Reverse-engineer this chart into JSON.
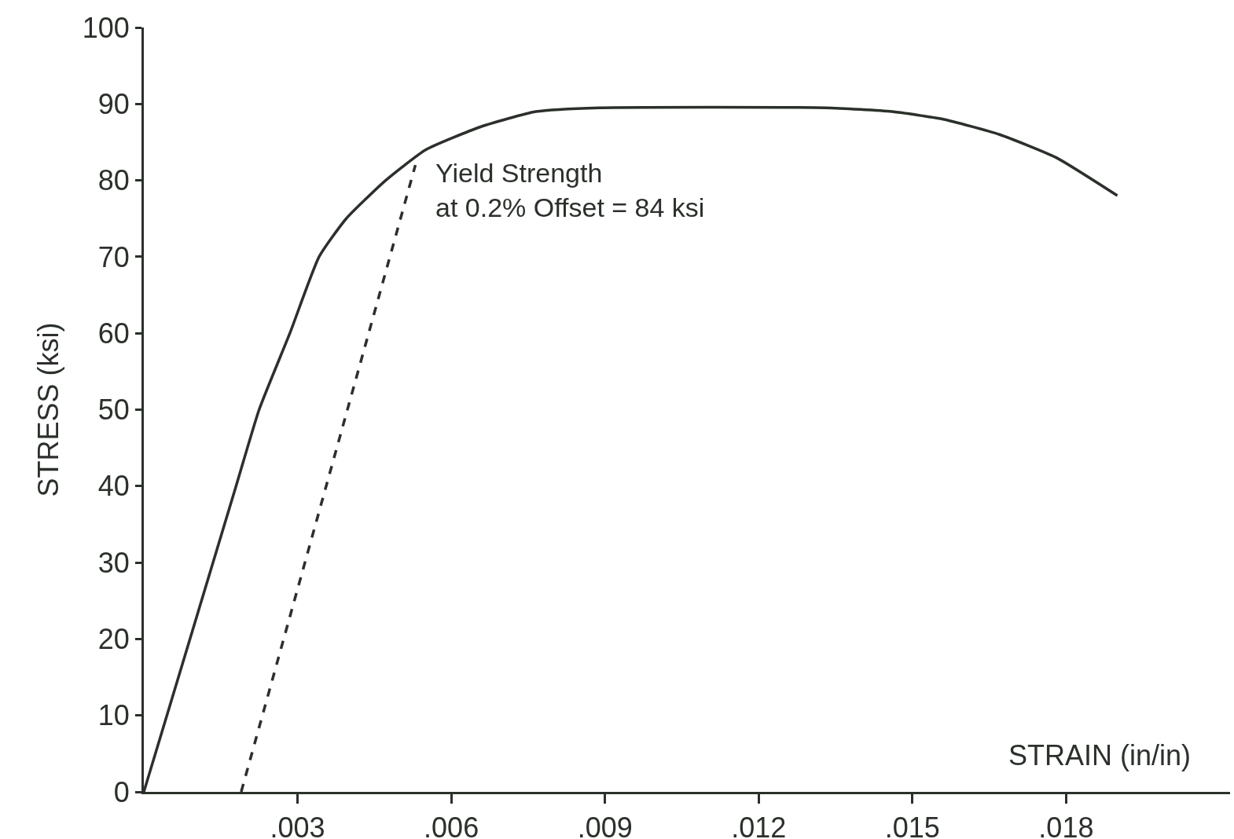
{
  "chart_data": {
    "type": "line",
    "xlabel": "STRAIN (in/in)",
    "ylabel": "STRESS (ksi)",
    "xlim": [
      0,
      0.0212
    ],
    "ylim": [
      0,
      100
    ],
    "xticks": [
      {
        "value": 0.003,
        "label": ".003"
      },
      {
        "value": 0.006,
        "label": ".006"
      },
      {
        "value": 0.009,
        "label": ".009"
      },
      {
        "value": 0.012,
        "label": ".012"
      },
      {
        "value": 0.015,
        "label": ".015"
      },
      {
        "value": 0.018,
        "label": ".018"
      }
    ],
    "yticks": [
      0,
      10,
      20,
      30,
      40,
      50,
      60,
      70,
      80,
      90,
      100
    ],
    "grid": false,
    "marker": "none",
    "series": [
      {
        "color": "#2b302b",
        "line_style": "solid",
        "x": [
          0,
          0.0009,
          0.0018,
          0.00225,
          0.00285,
          0.00342,
          0.00395,
          0.00472,
          0.0055,
          0.00657,
          0.00765,
          0.0089,
          0.0133,
          0.0146,
          0.0156,
          0.0167,
          0.0178,
          0.019
        ],
        "values": [
          0,
          20,
          40,
          50,
          60,
          70,
          75,
          80,
          84,
          87,
          89,
          89.5,
          89.5,
          89,
          88,
          86,
          83,
          78
        ]
      },
      {
        "color": "#2b302b",
        "line_style": "dashed",
        "x": [
          0.0019,
          0.0053
        ],
        "values": [
          0,
          82
        ]
      }
    ],
    "annotations": [
      {
        "text": "Yield Strength\nat 0.2% Offset = 84 ksi",
        "x": 0.0055,
        "y": 84
      }
    ]
  }
}
